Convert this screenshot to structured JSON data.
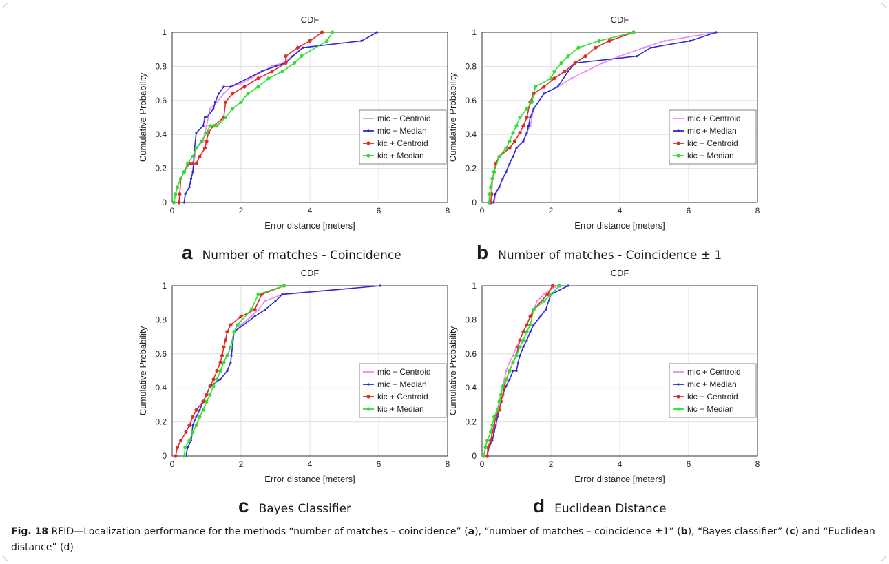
{
  "colors": {
    "mic_centroid": "#ee88ee",
    "mic_median": "#2b2bd6",
    "kic_centroid": "#e02b2b",
    "kic_median": "#33dd33"
  },
  "captions": {
    "a": {
      "letter": "a",
      "text": "Number of matches - Coincidence"
    },
    "b": {
      "letter": "b",
      "text": "Number of matches - Coincidence ± 1"
    },
    "c": {
      "letter": "c",
      "text": "Bayes Classifier"
    },
    "d": {
      "letter": "d",
      "text": "Euclidean Distance"
    }
  },
  "figure_caption": {
    "label": "Fig. 18",
    "t1": " RFID—Localization performance for the methods “number of matches – coincidence” (",
    "a": "a",
    "t2": "), “number of matches – coincidence ±1” (",
    "b": "b",
    "t3": "), “Bayes classifier” (",
    "c": "c",
    "t4": ") and “Euclidean distance” (d)"
  },
  "chart_data": [
    {
      "id": "a",
      "type": "line",
      "title": "CDF",
      "xlabel": "Error distance [meters]",
      "ylabel": "Cumulative Probability",
      "xlim": [
        0,
        8
      ],
      "ylim": [
        0,
        1
      ],
      "xticks": [
        "0",
        "2",
        "4",
        "6",
        "8"
      ],
      "yticks": [
        "0",
        "0.2",
        "0.4",
        "0.6",
        "0.8",
        "1"
      ],
      "grid": true,
      "legend_position": "right",
      "series": [
        {
          "name": "mic + Centroid",
          "color_key": "mic_centroid",
          "x": [
            0.35,
            0.38,
            0.5,
            0.55,
            0.6,
            0.62,
            0.65,
            0.7,
            0.9,
            0.95,
            1.0,
            1.1,
            1.3,
            1.5,
            1.7,
            2.0,
            2.3,
            2.6,
            2.9,
            3.2,
            3.5,
            3.8,
            5.5,
            5.95
          ],
          "y": [
            0,
            0.05,
            0.09,
            0.14,
            0.18,
            0.23,
            0.27,
            0.32,
            0.36,
            0.41,
            0.45,
            0.55,
            0.59,
            0.64,
            0.68,
            0.7,
            0.73,
            0.77,
            0.8,
            0.82,
            0.86,
            0.91,
            0.95,
            1.0
          ]
        },
        {
          "name": "mic + Median",
          "color_key": "mic_median",
          "x": [
            0.35,
            0.38,
            0.5,
            0.55,
            0.6,
            0.62,
            0.65,
            0.7,
            0.9,
            0.95,
            1.0,
            1.2,
            1.25,
            1.35,
            1.5,
            1.7,
            2.6,
            3.0,
            3.3,
            3.5,
            3.8,
            5.5,
            5.95
          ],
          "y": [
            0,
            0.05,
            0.09,
            0.14,
            0.18,
            0.23,
            0.32,
            0.41,
            0.45,
            0.5,
            0.5,
            0.55,
            0.59,
            0.64,
            0.68,
            0.68,
            0.77,
            0.8,
            0.82,
            0.86,
            0.91,
            0.95,
            1.0
          ]
        },
        {
          "name": "kic + Centroid",
          "color_key": "kic_centroid",
          "x": [
            0.2,
            0.22,
            0.25,
            0.35,
            0.5,
            0.6,
            0.7,
            0.8,
            0.95,
            1.0,
            1.05,
            1.2,
            1.5,
            1.55,
            1.75,
            2.1,
            2.5,
            2.9,
            3.3,
            3.3,
            3.65,
            4.0,
            4.35
          ],
          "y": [
            0,
            0.05,
            0.14,
            0.18,
            0.23,
            0.23,
            0.23,
            0.27,
            0.32,
            0.36,
            0.41,
            0.45,
            0.5,
            0.59,
            0.64,
            0.68,
            0.73,
            0.77,
            0.82,
            0.86,
            0.91,
            0.95,
            1.0
          ]
        },
        {
          "name": "kic + Median",
          "color_key": "kic_median",
          "x": [
            0.05,
            0.1,
            0.15,
            0.25,
            0.35,
            0.45,
            0.6,
            0.7,
            0.85,
            1.0,
            1.1,
            1.3,
            1.55,
            1.75,
            2.0,
            2.2,
            2.5,
            2.8,
            3.2,
            3.55,
            3.75,
            4.5,
            4.65
          ],
          "y": [
            0,
            0.05,
            0.09,
            0.14,
            0.18,
            0.23,
            0.27,
            0.32,
            0.36,
            0.41,
            0.45,
            0.45,
            0.5,
            0.55,
            0.59,
            0.64,
            0.68,
            0.73,
            0.77,
            0.82,
            0.86,
            0.95,
            1.0
          ]
        }
      ]
    },
    {
      "id": "b",
      "type": "line",
      "title": "CDF",
      "xlabel": "Error distance [meters]",
      "ylabel": "Cumulative Probability",
      "xlim": [
        0,
        8
      ],
      "ylim": [
        0,
        1
      ],
      "xticks": [
        "0",
        "2",
        "4",
        "6",
        "8"
      ],
      "yticks": [
        "0",
        "0.2",
        "0.4",
        "0.6",
        "0.8",
        "1"
      ],
      "grid": true,
      "legend_position": "right",
      "series": [
        {
          "name": "mic + Centroid",
          "color_key": "mic_centroid",
          "x": [
            0.35,
            0.4,
            0.5,
            0.6,
            0.7,
            0.8,
            0.9,
            1.0,
            1.2,
            1.3,
            1.4,
            1.5,
            1.8,
            2.2,
            2.6,
            3.0,
            3.5,
            4.0,
            4.7,
            5.3,
            6.8
          ],
          "y": [
            0,
            0.05,
            0.09,
            0.14,
            0.18,
            0.23,
            0.27,
            0.32,
            0.36,
            0.41,
            0.45,
            0.55,
            0.64,
            0.68,
            0.73,
            0.77,
            0.82,
            0.86,
            0.91,
            0.95,
            1.0
          ]
        },
        {
          "name": "mic + Median",
          "color_key": "mic_median",
          "x": [
            0.33,
            0.38,
            0.5,
            0.6,
            0.7,
            0.8,
            0.9,
            1.0,
            1.2,
            1.3,
            1.35,
            1.4,
            1.5,
            1.8,
            2.2,
            2.5,
            2.7,
            4.5,
            4.9,
            6.05,
            6.8
          ],
          "y": [
            0,
            0.05,
            0.09,
            0.14,
            0.18,
            0.23,
            0.27,
            0.32,
            0.36,
            0.41,
            0.45,
            0.5,
            0.55,
            0.64,
            0.68,
            0.77,
            0.82,
            0.86,
            0.91,
            0.95,
            1.0
          ]
        },
        {
          "name": "kic + Centroid",
          "color_key": "kic_centroid",
          "x": [
            0.25,
            0.28,
            0.3,
            0.35,
            0.4,
            0.5,
            0.8,
            0.95,
            1.1,
            1.2,
            1.3,
            1.4,
            1.5,
            1.8,
            2.1,
            2.4,
            2.7,
            3.0,
            3.3,
            3.7,
            4.4
          ],
          "y": [
            0,
            0.05,
            0.14,
            0.18,
            0.23,
            0.27,
            0.32,
            0.36,
            0.41,
            0.45,
            0.5,
            0.59,
            0.64,
            0.68,
            0.73,
            0.77,
            0.82,
            0.86,
            0.91,
            0.95,
            1.0
          ]
        },
        {
          "name": "kic + Median",
          "color_key": "kic_median",
          "x": [
            0.2,
            0.22,
            0.25,
            0.3,
            0.35,
            0.5,
            0.7,
            0.8,
            0.9,
            1.0,
            1.1,
            1.3,
            1.45,
            1.55,
            2.0,
            2.1,
            2.3,
            2.5,
            2.8,
            3.4,
            4.4
          ],
          "y": [
            0,
            0.05,
            0.09,
            0.14,
            0.18,
            0.27,
            0.32,
            0.36,
            0.41,
            0.45,
            0.5,
            0.55,
            0.59,
            0.68,
            0.73,
            0.77,
            0.82,
            0.86,
            0.91,
            0.95,
            1.0
          ]
        }
      ]
    },
    {
      "id": "c",
      "type": "line",
      "title": "CDF",
      "xlabel": "Error distance [meters]",
      "ylabel": "Cumulative Probability",
      "xlim": [
        0,
        8
      ],
      "ylim": [
        0,
        1
      ],
      "xticks": [
        "0",
        "2",
        "4",
        "6",
        "8"
      ],
      "yticks": [
        "0",
        "0.2",
        "0.4",
        "0.6",
        "0.8",
        "1"
      ],
      "grid": true,
      "legend_position": "right",
      "series": [
        {
          "name": "mic + Centroid",
          "color_key": "mic_centroid",
          "x": [
            0.4,
            0.45,
            0.55,
            0.6,
            0.7,
            0.8,
            0.9,
            1.0,
            1.1,
            1.2,
            1.3,
            1.4,
            1.5,
            1.6,
            1.7,
            1.8,
            2.0,
            2.3,
            2.5,
            2.7,
            3.2,
            6.05
          ],
          "y": [
            0,
            0.05,
            0.09,
            0.14,
            0.18,
            0.23,
            0.27,
            0.32,
            0.36,
            0.41,
            0.45,
            0.5,
            0.55,
            0.59,
            0.64,
            0.73,
            0.77,
            0.82,
            0.86,
            0.91,
            0.95,
            1.0
          ]
        },
        {
          "name": "mic + Median",
          "color_key": "mic_median",
          "x": [
            0.4,
            0.45,
            0.55,
            0.6,
            0.7,
            0.8,
            0.9,
            1.0,
            1.1,
            1.4,
            1.6,
            1.7,
            1.72,
            1.75,
            1.8,
            2.4,
            2.7,
            3.0,
            3.2,
            6.05
          ],
          "y": [
            0,
            0.05,
            0.09,
            0.18,
            0.23,
            0.27,
            0.32,
            0.36,
            0.41,
            0.45,
            0.5,
            0.55,
            0.59,
            0.64,
            0.73,
            0.82,
            0.86,
            0.91,
            0.95,
            1.0
          ]
        },
        {
          "name": "kic + Centroid",
          "color_key": "kic_centroid",
          "x": [
            0.1,
            0.15,
            0.25,
            0.4,
            0.5,
            0.6,
            0.7,
            0.9,
            1.0,
            1.1,
            1.2,
            1.3,
            1.4,
            1.45,
            1.5,
            1.55,
            1.6,
            1.7,
            2.0,
            2.4,
            2.6,
            3.25
          ],
          "y": [
            0,
            0.05,
            0.09,
            0.14,
            0.18,
            0.23,
            0.27,
            0.32,
            0.36,
            0.41,
            0.45,
            0.5,
            0.55,
            0.59,
            0.64,
            0.68,
            0.73,
            0.77,
            0.82,
            0.86,
            0.95,
            1.0
          ]
        },
        {
          "name": "kic + Median",
          "color_key": "kic_median",
          "x": [
            0.35,
            0.38,
            0.5,
            0.6,
            0.7,
            0.8,
            0.9,
            1.0,
            1.1,
            1.2,
            1.3,
            1.4,
            1.5,
            1.6,
            1.7,
            1.8,
            1.9,
            2.3,
            2.5,
            3.25
          ],
          "y": [
            0,
            0.05,
            0.09,
            0.14,
            0.18,
            0.23,
            0.27,
            0.32,
            0.36,
            0.41,
            0.45,
            0.5,
            0.55,
            0.59,
            0.64,
            0.73,
            0.77,
            0.86,
            0.95,
            1.0
          ]
        }
      ]
    },
    {
      "id": "d",
      "type": "line",
      "title": "CDF",
      "xlabel": "Error distance [meters]",
      "ylabel": "Cumulative Probability",
      "xlim": [
        0,
        8
      ],
      "ylim": [
        0,
        1
      ],
      "xticks": [
        "0",
        "2",
        "4",
        "6",
        "8"
      ],
      "yticks": [
        "0",
        "0.2",
        "0.4",
        "0.6",
        "0.8",
        "1"
      ],
      "grid": true,
      "legend_position": "right",
      "series": [
        {
          "name": "mic + Centroid",
          "color_key": "mic_centroid",
          "x": [
            0.15,
            0.2,
            0.25,
            0.3,
            0.35,
            0.4,
            0.45,
            0.5,
            0.55,
            0.6,
            0.65,
            0.7,
            0.8,
            0.9,
            1.0,
            1.1,
            1.2,
            1.3,
            1.4,
            1.5,
            1.6,
            1.7,
            1.8,
            2.0,
            2.2
          ],
          "y": [
            0,
            0.05,
            0.09,
            0.14,
            0.18,
            0.23,
            0.27,
            0.32,
            0.36,
            0.41,
            0.45,
            0.5,
            0.55,
            0.59,
            0.64,
            0.68,
            0.73,
            0.77,
            0.82,
            0.86,
            0.91,
            0.93,
            0.95,
            0.98,
            1.0
          ]
        },
        {
          "name": "mic + Median",
          "color_key": "mic_median",
          "x": [
            0.15,
            0.2,
            0.3,
            0.35,
            0.4,
            0.45,
            0.5,
            0.55,
            0.6,
            0.7,
            0.8,
            0.9,
            1.0,
            1.05,
            1.1,
            1.2,
            1.3,
            1.4,
            1.5,
            1.7,
            1.85,
            2.0,
            2.5
          ],
          "y": [
            0,
            0.05,
            0.09,
            0.14,
            0.18,
            0.23,
            0.27,
            0.32,
            0.36,
            0.41,
            0.45,
            0.5,
            0.5,
            0.55,
            0.59,
            0.64,
            0.68,
            0.73,
            0.77,
            0.82,
            0.86,
            0.95,
            1.0
          ]
        },
        {
          "name": "kic + Centroid",
          "color_key": "kic_centroid",
          "x": [
            0.15,
            0.17,
            0.25,
            0.3,
            0.35,
            0.4,
            0.5,
            0.55,
            0.6,
            0.65,
            0.7,
            0.8,
            0.9,
            1.0,
            1.05,
            1.1,
            1.2,
            1.3,
            1.4,
            1.5,
            1.9,
            2.05
          ],
          "y": [
            0,
            0.05,
            0.09,
            0.14,
            0.18,
            0.23,
            0.27,
            0.32,
            0.36,
            0.41,
            0.45,
            0.5,
            0.55,
            0.59,
            0.64,
            0.68,
            0.73,
            0.77,
            0.82,
            0.86,
            0.95,
            1.0
          ]
        },
        {
          "name": "kic + Median",
          "color_key": "kic_median",
          "x": [
            0.05,
            0.1,
            0.15,
            0.25,
            0.3,
            0.35,
            0.45,
            0.5,
            0.55,
            0.6,
            0.7,
            0.8,
            0.9,
            1.0,
            1.1,
            1.2,
            1.3,
            1.4,
            1.5,
            1.8,
            2.0,
            2.25
          ],
          "y": [
            0,
            0.05,
            0.09,
            0.14,
            0.18,
            0.23,
            0.27,
            0.32,
            0.36,
            0.41,
            0.45,
            0.5,
            0.55,
            0.59,
            0.64,
            0.68,
            0.73,
            0.77,
            0.86,
            0.91,
            0.95,
            1.0
          ]
        }
      ]
    }
  ]
}
